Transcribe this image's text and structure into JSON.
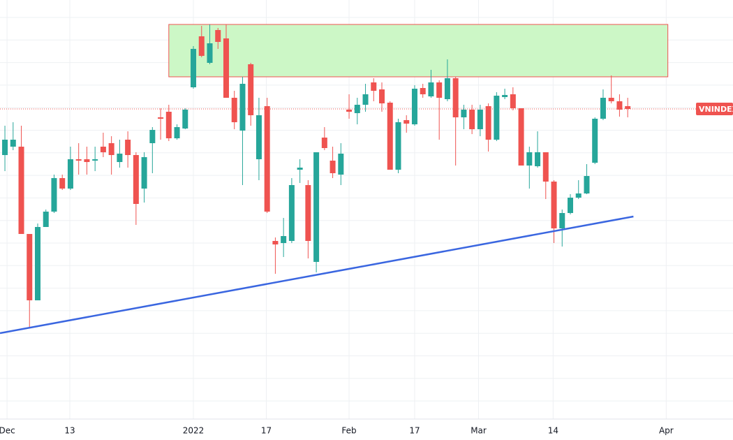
{
  "chart_data": {
    "type": "candlestick",
    "x": [
      0,
      1,
      2,
      3,
      4,
      5,
      6,
      7,
      8,
      9,
      10,
      11,
      12,
      13,
      14,
      15,
      16,
      17,
      18,
      19,
      20,
      21,
      22,
      23,
      24,
      25,
      26,
      27,
      28,
      29,
      30,
      31,
      32,
      33,
      34,
      35,
      36,
      37,
      38,
      39,
      40,
      41,
      42,
      43,
      44,
      45,
      46,
      47,
      48,
      49,
      50,
      51,
      52,
      53,
      54,
      55,
      56,
      57,
      58,
      59,
      60,
      61,
      62,
      63,
      64,
      65,
      66,
      67,
      68,
      69,
      70,
      71,
      72,
      73,
      74,
      75,
      76
    ],
    "open": [
      378,
      390,
      390,
      265,
      170,
      275,
      297,
      345,
      330,
      372,
      372,
      370,
      390,
      395,
      368,
      400,
      378,
      330,
      395,
      432,
      440,
      402,
      416,
      475,
      548,
      510,
      557,
      545,
      460,
      413,
      508,
      372,
      448,
      255,
      252,
      255,
      357,
      335,
      225,
      403,
      370,
      350,
      443,
      438,
      450,
      482,
      472,
      453,
      357,
      428,
      422,
      474,
      462,
      482,
      458,
      488,
      432,
      443,
      415,
      448,
      400,
      461,
      465,
      445,
      363,
      362,
      382,
      340,
      273,
      295,
      317,
      323,
      367,
      430,
      460,
      455,
      448
    ],
    "high": [
      420,
      425,
      420,
      265,
      280,
      300,
      350,
      350,
      390,
      395,
      390,
      390,
      410,
      405,
      400,
      412,
      382,
      382,
      418,
      445,
      450,
      422,
      445,
      534,
      563,
      565,
      560,
      565,
      470,
      490,
      510,
      460,
      460,
      260,
      288,
      345,
      372,
      342,
      382,
      418,
      390,
      395,
      465,
      460,
      480,
      488,
      482,
      455,
      430,
      435,
      478,
      480,
      500,
      485,
      515,
      490,
      450,
      450,
      450,
      452,
      468,
      473,
      475,
      445,
      390,
      412,
      382,
      342,
      300,
      322,
      342,
      365,
      432,
      472,
      492,
      465,
      460
    ],
    "low": [
      355,
      385,
      265,
      132,
      170,
      275,
      295,
      328,
      328,
      350,
      350,
      355,
      375,
      350,
      360,
      360,
      278,
      310,
      352,
      400,
      398,
      400,
      415,
      473,
      518,
      508,
      530,
      460,
      415,
      335,
      420,
      342,
      295,
      208,
      232,
      252,
      338,
      230,
      210,
      385,
      345,
      335,
      430,
      422,
      440,
      455,
      440,
      357,
      352,
      410,
      420,
      460,
      460,
      400,
      455,
      363,
      415,
      408,
      405,
      383,
      398,
      458,
      442,
      363,
      330,
      360,
      315,
      252,
      247,
      293,
      315,
      322,
      365,
      428,
      452,
      433,
      432
    ],
    "close": [
      400,
      400,
      265,
      170,
      275,
      297,
      345,
      330,
      372,
      370,
      368,
      372,
      382,
      378,
      380,
      378,
      308,
      375,
      414,
      430,
      402,
      418,
      443,
      530,
      520,
      538,
      540,
      460,
      425,
      480,
      435,
      435,
      297,
      250,
      262,
      335,
      360,
      255,
      382,
      388,
      352,
      380,
      440,
      450,
      465,
      470,
      452,
      357,
      425,
      423,
      473,
      465,
      482,
      460,
      488,
      432,
      443,
      415,
      443,
      400,
      463,
      464,
      445,
      363,
      382,
      382,
      340,
      273,
      295,
      317,
      323,
      348,
      430,
      460,
      455,
      443,
      444
    ],
    "up_color": "#26a69a",
    "down_color": "#ef5350",
    "xlim": [
      -0.6,
      88.85
    ],
    "ylim": [
      0,
      600
    ],
    "xticks": [
      {
        "value": 0.26,
        "label": "Dec"
      },
      {
        "value": 7.92,
        "label": "13"
      },
      {
        "value": 23,
        "label": "2022"
      },
      {
        "value": 31.9,
        "label": "17"
      },
      {
        "value": 42,
        "label": "Feb"
      },
      {
        "value": 50,
        "label": "17"
      },
      {
        "value": 57.8,
        "label": "Mar"
      },
      {
        "value": 66.9,
        "label": "14"
      },
      {
        "value": 80.7,
        "label": "Apr"
      }
    ],
    "zone": {
      "x": [
        20,
        80.9
      ],
      "y": [
        490,
        565
      ],
      "color": "#ccf7c6",
      "border": "#ef5350"
    },
    "trendline": {
      "x": [
        -0.6,
        76.7
      ],
      "y": [
        123,
        290
      ],
      "color": "#3a66e0"
    },
    "price_line": {
      "value": 444,
      "label": "VNINDEX",
      "color": "#ef5350"
    }
  }
}
